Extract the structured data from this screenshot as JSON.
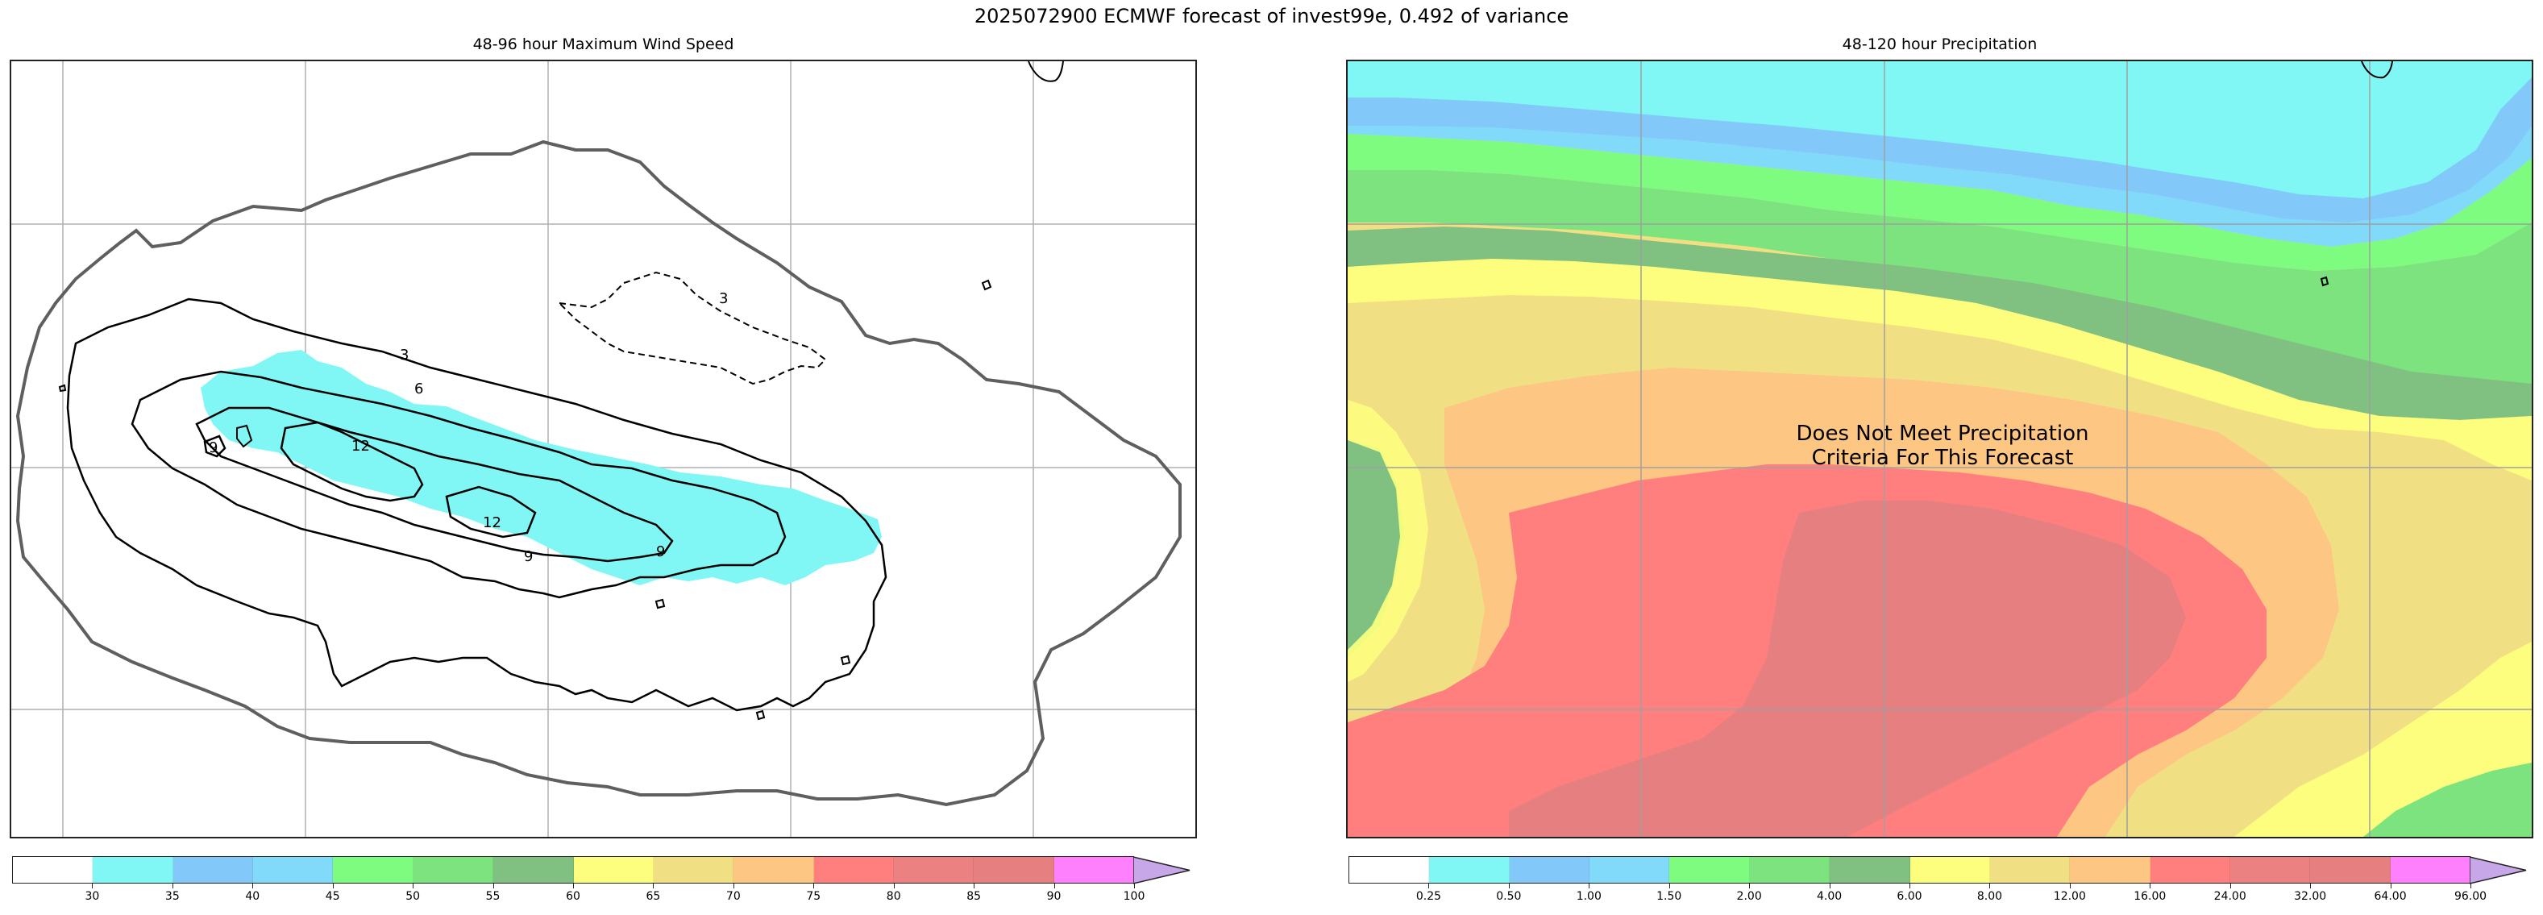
{
  "figure": {
    "title": "2025072900 ECMWF forecast of invest99e, 0.492 of variance"
  },
  "left_panel": {
    "title": "48-96 hour Maximum Wind Speed",
    "contour_labels": [
      "3",
      "6",
      "9",
      "12",
      "12",
      "9",
      "3",
      "9"
    ],
    "colorbar": {
      "colors": [
        "#ffffff",
        "#80f7f4",
        "#82c8f9",
        "#82dafb",
        "#7efc80",
        "#7de37f",
        "#80c181",
        "#fefe7e",
        "#f1e083",
        "#fdc682",
        "#ff7f7f",
        "#ec8181",
        "#e57f80",
        "#fe80fd",
        "#c8a7e8"
      ],
      "tick_labels": [
        "30",
        "35",
        "40",
        "45",
        "50",
        "55",
        "60",
        "65",
        "70",
        "75",
        "80",
        "85",
        "90",
        "100"
      ]
    }
  },
  "right_panel": {
    "title": "48-120 hour Precipitation",
    "overlay_text_line1": "Does Not Meet Precipitation",
    "overlay_text_line2": "Criteria For This Forecast",
    "colorbar": {
      "colors": [
        "#ffffff",
        "#80f7f4",
        "#82c8f9",
        "#82dafb",
        "#7efc80",
        "#7de37f",
        "#80c181",
        "#fefe7e",
        "#f1e083",
        "#fdc682",
        "#ff7f7f",
        "#ec8181",
        "#e57f80",
        "#fe80fd",
        "#c8a7e8"
      ],
      "tick_labels": [
        "0.25",
        "0.50",
        "1.00",
        "1.50",
        "2.00",
        "4.00",
        "6.00",
        "8.00",
        "12.00",
        "16.00",
        "24.00",
        "32.00",
        "64.00",
        "96.00"
      ]
    }
  }
}
